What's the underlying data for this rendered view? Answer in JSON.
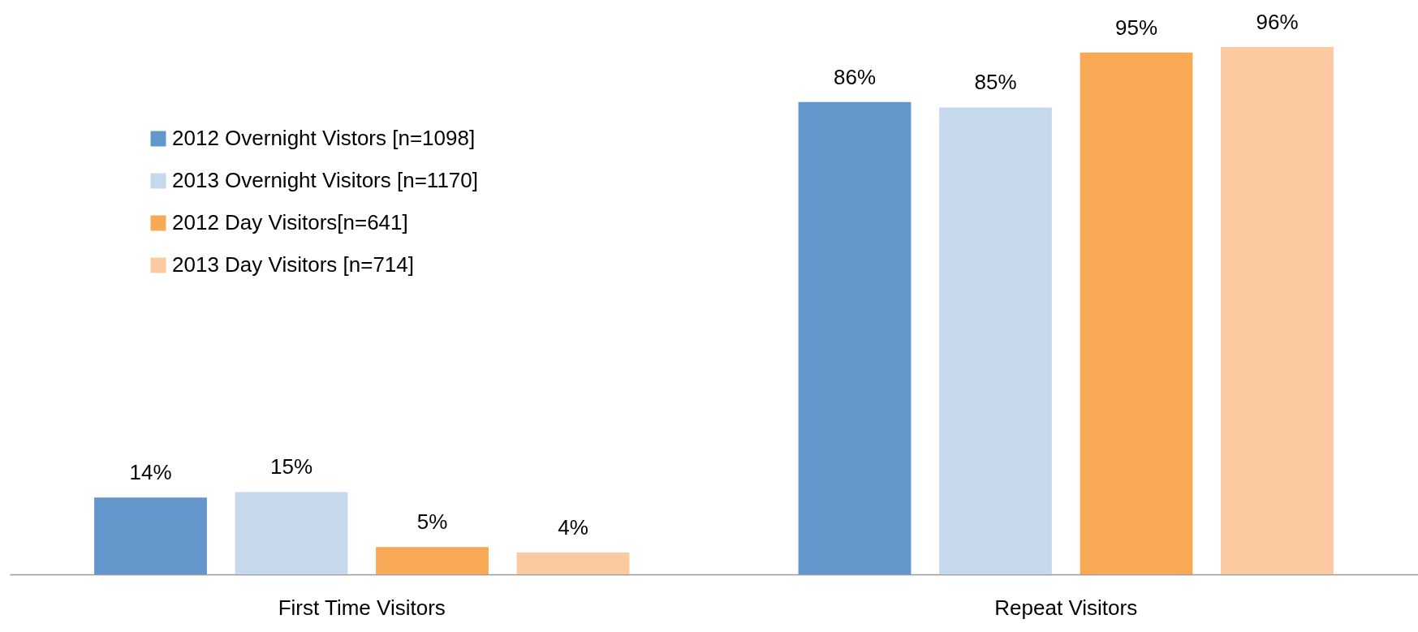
{
  "chart_data": {
    "type": "bar",
    "categories": [
      "First Time Visitors",
      "Repeat Visitors"
    ],
    "series": [
      {
        "name": "2012 Overnight Vistors [n=1098]",
        "color": "#6397cb",
        "values": [
          14,
          86
        ],
        "value_labels": [
          "14%",
          "86%"
        ]
      },
      {
        "name": "2013 Overnight Visitors [n=1170]",
        "color": "#c6d8ec",
        "values": [
          15,
          85
        ],
        "value_labels": [
          "15%",
          "85%"
        ]
      },
      {
        "name": "2012 Day Visitors[n=641]",
        "color": "#f8a956",
        "values": [
          5,
          95
        ],
        "value_labels": [
          "5%",
          "95%"
        ]
      },
      {
        "name": "2013 Day Visitors [n=714]",
        "color": "#fbcaa0",
        "values": [
          4,
          96
        ],
        "value_labels": [
          "4%",
          "96%"
        ]
      }
    ],
    "legend": "top left",
    "tick_labels": "x",
    "grid": false
  }
}
